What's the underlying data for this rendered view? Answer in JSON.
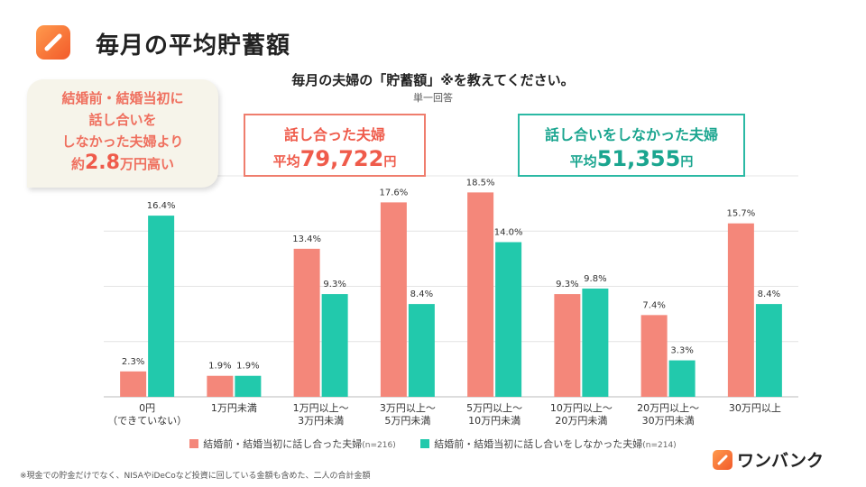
{
  "page": {
    "title": "毎月の平均貯蓄額",
    "icon": "pencil-icon"
  },
  "callout": {
    "line1": "結婚前・結婚当初に",
    "line2": "話し合いを",
    "line3": "しなかった夫婦より",
    "prefix": "約",
    "amount": "2.8",
    "suffix": "万円高い"
  },
  "boxes": {
    "a": {
      "heading": "話し合った夫婦",
      "avg_label": "平均",
      "avg_value": "79,722",
      "unit": "円"
    },
    "b": {
      "heading": "話し合いをしなかった夫婦",
      "avg_label": "平均",
      "avg_value": "51,355",
      "unit": "円"
    }
  },
  "chart_data": {
    "type": "bar",
    "title": "毎月の夫婦の「貯蓄額」※を教えてください。",
    "subtitle": "単一回答",
    "categories": [
      [
        "0円",
        "（できていない）"
      ],
      [
        "1万円未満"
      ],
      [
        "1万円以上～",
        "3万円未満"
      ],
      [
        "3万円以上～",
        "5万円未満"
      ],
      [
        "5万円以上～",
        "10万円未満"
      ],
      [
        "10万円以上～",
        "20万円未満"
      ],
      [
        "20万円以上～",
        "30万円未満"
      ],
      [
        "30万円以上"
      ]
    ],
    "series": [
      {
        "name": "結婚前・結婚当初に話し合った夫婦",
        "n": "(n=216)",
        "color": "#f4877a",
        "values": [
          2.3,
          1.9,
          13.4,
          17.6,
          18.5,
          9.3,
          7.4,
          15.7
        ]
      },
      {
        "name": "結婚前・結婚当初に話し合いをしなかった夫婦",
        "n": "(n=214)",
        "color": "#22c9ac",
        "values": [
          16.4,
          1.9,
          9.3,
          8.4,
          14.0,
          9.8,
          3.3,
          8.4
        ]
      }
    ],
    "value_suffix": "%",
    "ylim": [
      0,
      20
    ],
    "grid": true,
    "legend": "bottom"
  },
  "footnote": "※現金での貯金だけでなく、NISAやiDeCoなど投資に回している金額も含めた、二人の合計金額",
  "brand": {
    "name": "ワンバンク",
    "icon": "pencil-logo-icon"
  }
}
